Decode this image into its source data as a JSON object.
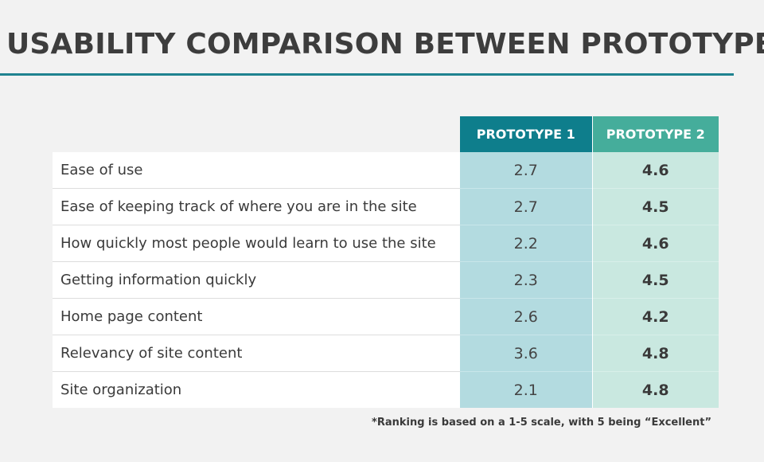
{
  "title": "USABILITY COMPARISON BETWEEN PROTOTYPES",
  "table": {
    "columns": [
      "",
      "PROTOTYPE 1",
      "PROTOTYPE 2"
    ],
    "rows": [
      {
        "criterion": "Ease of use",
        "prototype_1": "2.7",
        "prototype_2": "4.6"
      },
      {
        "criterion": "Ease of keeping track of where you are in the site",
        "prototype_1": "2.7",
        "prototype_2": "4.5"
      },
      {
        "criterion": "How quickly most people would learn to use the site",
        "prototype_1": "2.2",
        "prototype_2": "4.6"
      },
      {
        "criterion": "Getting information quickly",
        "prototype_1": "2.3",
        "prototype_2": "4.5"
      },
      {
        "criterion": "Home page content",
        "prototype_1": "2.6",
        "prototype_2": "4.2"
      },
      {
        "criterion": "Relevancy of site content",
        "prototype_1": "3.6",
        "prototype_2": "4.8"
      },
      {
        "criterion": "Site organization",
        "prototype_1": "2.1",
        "prototype_2": "4.8"
      }
    ]
  },
  "footnote": "*Ranking is based on a 1-5 scale, with 5 being “Excellent”",
  "colors": {
    "accent_rule": "#1f8390",
    "prototype_1_header": "#0e7e8c",
    "prototype_2_header": "#45ad9b",
    "prototype_1_cell": "#b3dbe0",
    "prototype_2_cell": "#c9e8e0"
  }
}
